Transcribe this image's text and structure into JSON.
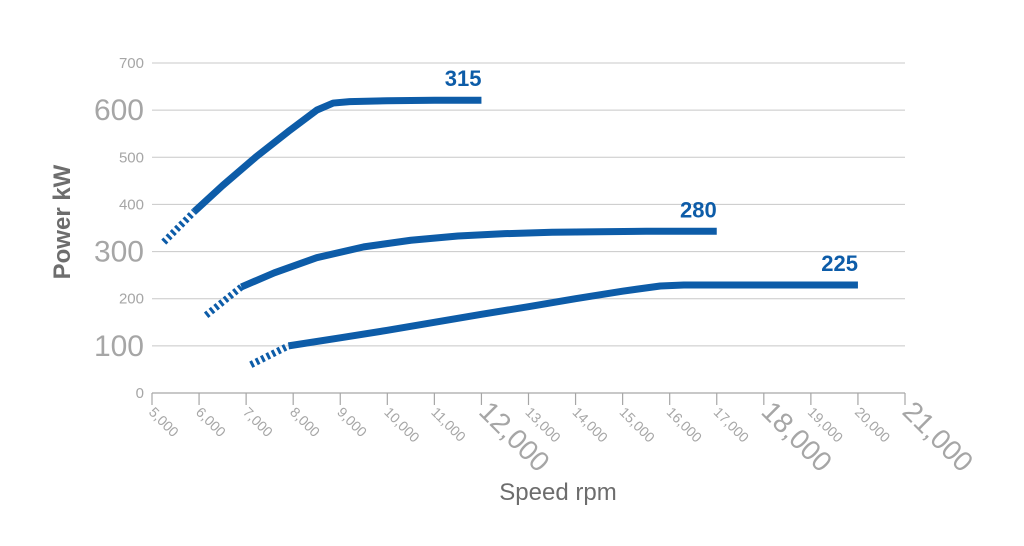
{
  "chart_data": {
    "type": "line",
    "xlabel": "Speed rpm",
    "ylabel": "Power kW",
    "xlim": [
      5000,
      21000
    ],
    "ylim": [
      0,
      700
    ],
    "grid": true,
    "line_color": "#0d5ca8",
    "x_ticks": [
      {
        "value": 5000,
        "label": "5,000",
        "major": false
      },
      {
        "value": 6000,
        "label": "6,000",
        "major": false
      },
      {
        "value": 7000,
        "label": "7,000",
        "major": false
      },
      {
        "value": 8000,
        "label": "8,000",
        "major": false
      },
      {
        "value": 9000,
        "label": "9,000",
        "major": false
      },
      {
        "value": 10000,
        "label": "10,000",
        "major": false
      },
      {
        "value": 11000,
        "label": "11,000",
        "major": false
      },
      {
        "value": 12000,
        "label": "12,000",
        "major": true
      },
      {
        "value": 13000,
        "label": "13,000",
        "major": false
      },
      {
        "value": 14000,
        "label": "14,000",
        "major": false
      },
      {
        "value": 15000,
        "label": "15,000",
        "major": false
      },
      {
        "value": 16000,
        "label": "16,000",
        "major": false
      },
      {
        "value": 17000,
        "label": "17,000",
        "major": false
      },
      {
        "value": 18000,
        "label": "18,000",
        "major": true
      },
      {
        "value": 19000,
        "label": "19,000",
        "major": false
      },
      {
        "value": 20000,
        "label": "20,000",
        "major": false
      },
      {
        "value": 21000,
        "label": "21,000",
        "major": true
      }
    ],
    "y_ticks": [
      {
        "value": 0,
        "label": "0",
        "major": false
      },
      {
        "value": 100,
        "label": "100",
        "major": true
      },
      {
        "value": 200,
        "label": "200",
        "major": false
      },
      {
        "value": 300,
        "label": "300",
        "major": true
      },
      {
        "value": 400,
        "label": "400",
        "major": false
      },
      {
        "value": 500,
        "label": "500",
        "major": false
      },
      {
        "value": 600,
        "label": "600",
        "major": true
      },
      {
        "value": 700,
        "label": "700",
        "major": false
      }
    ],
    "series": [
      {
        "name": "315",
        "dashed": {
          "x": [
            5250,
            5900
          ],
          "y": [
            320,
            385
          ]
        },
        "solid": {
          "x": [
            5900,
            6500,
            7200,
            7900,
            8500,
            8850,
            9200,
            10000,
            11000,
            12000
          ],
          "y": [
            385,
            440,
            500,
            555,
            600,
            615,
            618,
            620,
            621,
            621
          ]
        }
      },
      {
        "name": "280",
        "dashed": {
          "x": [
            6150,
            6900
          ],
          "y": [
            165,
            225
          ]
        },
        "solid": {
          "x": [
            6900,
            7600,
            8500,
            9500,
            10500,
            11500,
            12500,
            13500,
            14500,
            15500,
            16500,
            17000
          ],
          "y": [
            225,
            255,
            287,
            310,
            324,
            333,
            338,
            341,
            342,
            343,
            343,
            343
          ]
        }
      },
      {
        "name": "225",
        "dashed": {
          "x": [
            7100,
            7900
          ],
          "y": [
            60,
            100
          ]
        },
        "solid": {
          "x": [
            7900,
            9000,
            10000,
            11000,
            12000,
            13000,
            14000,
            15000,
            15800,
            16300,
            17000,
            18000,
            19000,
            20000
          ],
          "y": [
            100,
            117,
            133,
            150,
            167,
            183,
            200,
            216,
            227,
            229,
            229,
            229,
            229,
            229
          ]
        }
      }
    ]
  }
}
